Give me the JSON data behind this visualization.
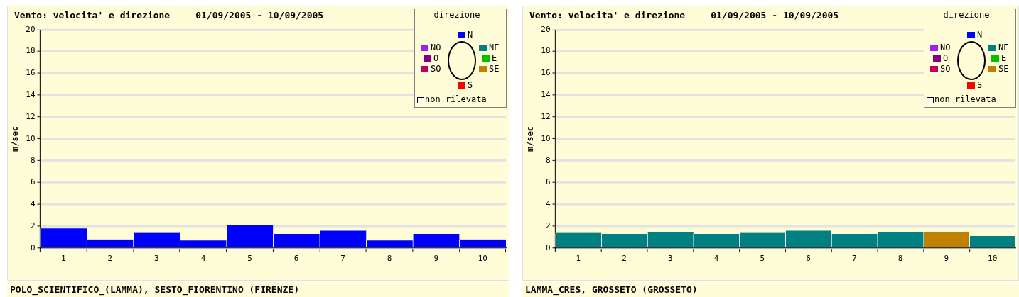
{
  "chart_data": [
    {
      "type": "bar",
      "title": "Vento: velocita' e direzione",
      "subtitle": "01/09/2005 - 10/09/2005",
      "ylabel": "m/sec",
      "legend_title": "direzione",
      "legend": "top right",
      "grid": "y",
      "annotations": [
        "POLO_SCIENTIFICO_(LAMMA), SESTO_FIORENTINO (FIRENZE)"
      ],
      "categories": [
        "1",
        "2",
        "3",
        "4",
        "5",
        "6",
        "7",
        "8",
        "9",
        "10"
      ],
      "ylim": [
        0,
        20
      ],
      "yticks": [
        0,
        2,
        4,
        6,
        8,
        10,
        12,
        14,
        16,
        18,
        20
      ],
      "series": [
        {
          "name": "N",
          "color": "#0000ff",
          "values": [
            1.8,
            0.8,
            1.4,
            0.7,
            2.1,
            1.3,
            1.6,
            0.7,
            1.3,
            0.8
          ]
        },
        {
          "name": "NE",
          "color": "#008080",
          "values": [
            null,
            null,
            null,
            null,
            null,
            null,
            null,
            null,
            null,
            null
          ]
        },
        {
          "name": "E",
          "color": "#00c000",
          "values": [
            null,
            null,
            null,
            null,
            null,
            null,
            null,
            null,
            null,
            null
          ]
        },
        {
          "name": "SE",
          "color": "#c08000",
          "values": [
            null,
            null,
            null,
            null,
            null,
            null,
            null,
            null,
            null,
            null
          ]
        },
        {
          "name": "S",
          "color": "#ff0000",
          "values": [
            null,
            null,
            null,
            null,
            null,
            null,
            null,
            null,
            null,
            null
          ]
        },
        {
          "name": "SO",
          "color": "#c00060",
          "values": [
            null,
            null,
            null,
            null,
            null,
            null,
            null,
            null,
            null,
            null
          ]
        },
        {
          "name": "O",
          "color": "#800080",
          "values": [
            null,
            null,
            null,
            null,
            null,
            null,
            null,
            null,
            null,
            null
          ]
        },
        {
          "name": "NO",
          "color": "#a020f0",
          "values": [
            null,
            null,
            null,
            null,
            null,
            null,
            null,
            null,
            null,
            null
          ]
        },
        {
          "name": "non rilevata",
          "color": "#ffffff",
          "values": [
            null,
            null,
            null,
            null,
            null,
            null,
            null,
            null,
            null,
            null
          ]
        }
      ]
    },
    {
      "type": "bar",
      "title": "Vento: velocita' e direzione",
      "subtitle": "01/09/2005 - 10/09/2005",
      "ylabel": "m/sec",
      "legend_title": "direzione",
      "legend": "top right",
      "grid": "y",
      "annotations": [
        "LAMMA_CRES, GROSSETO (GROSSETO)"
      ],
      "categories": [
        "1",
        "2",
        "3",
        "4",
        "5",
        "6",
        "7",
        "8",
        "9",
        "10"
      ],
      "ylim": [
        0,
        20
      ],
      "yticks": [
        0,
        2,
        4,
        6,
        8,
        10,
        12,
        14,
        16,
        18,
        20
      ],
      "series": [
        {
          "name": "N",
          "color": "#0000ff",
          "values": [
            null,
            null,
            null,
            null,
            null,
            null,
            null,
            null,
            null,
            null
          ]
        },
        {
          "name": "NE",
          "color": "#008080",
          "values": [
            1.4,
            1.3,
            1.5,
            1.3,
            1.4,
            1.6,
            1.3,
            1.5,
            null,
            1.1
          ]
        },
        {
          "name": "E",
          "color": "#00c000",
          "values": [
            null,
            null,
            null,
            null,
            null,
            null,
            null,
            null,
            null,
            null
          ]
        },
        {
          "name": "SE",
          "color": "#c08000",
          "values": [
            null,
            null,
            null,
            null,
            null,
            null,
            null,
            null,
            1.5,
            null
          ]
        },
        {
          "name": "S",
          "color": "#ff0000",
          "values": [
            null,
            null,
            null,
            null,
            null,
            null,
            null,
            null,
            null,
            null
          ]
        },
        {
          "name": "SO",
          "color": "#c00060",
          "values": [
            null,
            null,
            null,
            null,
            null,
            null,
            null,
            null,
            null,
            null
          ]
        },
        {
          "name": "O",
          "color": "#800080",
          "values": [
            null,
            null,
            null,
            null,
            null,
            null,
            null,
            null,
            null,
            null
          ]
        },
        {
          "name": "NO",
          "color": "#a020f0",
          "values": [
            null,
            null,
            null,
            null,
            null,
            null,
            null,
            null,
            null,
            null
          ]
        },
        {
          "name": "non rilevata",
          "color": "#ffffff",
          "values": [
            null,
            null,
            null,
            null,
            null,
            null,
            null,
            null,
            null,
            null
          ]
        }
      ]
    }
  ]
}
